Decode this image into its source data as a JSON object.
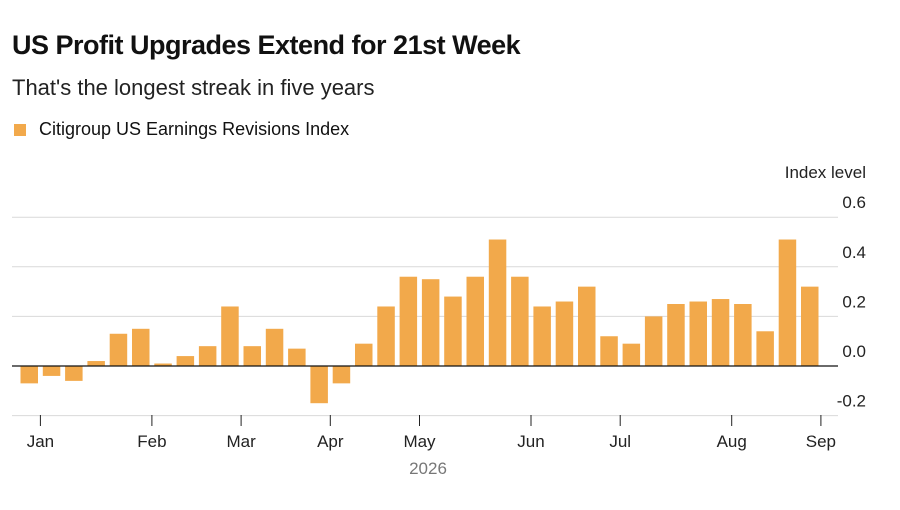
{
  "chart_data": {
    "type": "bar",
    "title": "US Profit Upgrades Extend for 21st Week",
    "subtitle": "That's the longest streak in five years",
    "legend": "Citigroup US Earnings Revisions Index",
    "ylabel": "Index level",
    "year_label": "2026",
    "ylim": [
      -0.2,
      0.6
    ],
    "yticks": [
      "0.6",
      "0.4",
      "0.2",
      "0.0",
      "-0.2"
    ],
    "ytick_values": [
      0.6,
      0.4,
      0.2,
      0.0,
      -0.2
    ],
    "month_labels": [
      "Jan",
      "Feb",
      "Mar",
      "Apr",
      "May",
      "Jun",
      "Jul",
      "Aug",
      "Sep"
    ],
    "month_positions": [
      0.5,
      5.5,
      9.5,
      13.5,
      17.5,
      22.5,
      26.5,
      31.5,
      35.5
    ],
    "color": "#f2a94b",
    "series": [
      {
        "values": [
          -0.07,
          -0.04,
          -0.06,
          0.02,
          0.13,
          0.15,
          0.01,
          0.04,
          0.08,
          0.24,
          0.08,
          0.15,
          0.07,
          -0.15,
          -0.07,
          0.09,
          0.24,
          0.36,
          0.35,
          0.28,
          0.36,
          0.51,
          0.36,
          0.24,
          0.26,
          0.32,
          0.12,
          0.09,
          0.2,
          0.25,
          0.26,
          0.27,
          0.25,
          0.14,
          0.51,
          0.32
        ]
      }
    ]
  }
}
